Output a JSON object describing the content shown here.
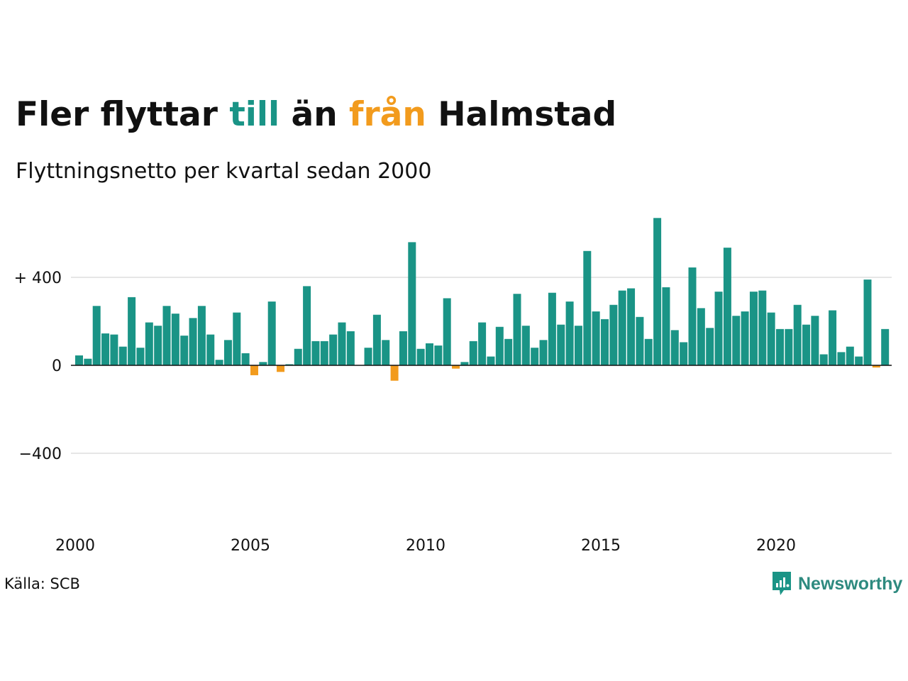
{
  "title": {
    "part1": "Fler flyttar ",
    "part2": "till",
    "part3": " än ",
    "part4": "från",
    "part5": " Halmstad"
  },
  "subtitle": "Flyttningsnetto per kvartal sedan 2000",
  "source": "Källa: SCB",
  "logo": {
    "text": "Newsworthy"
  },
  "colors": {
    "positive": "#1a9486",
    "negative": "#f29b1d",
    "grid": "#e6e6e6",
    "text": "#111111",
    "logo_text": "#2e8a7f"
  },
  "chart_data": {
    "type": "bar",
    "xlabel": "",
    "ylabel": "",
    "ylim": [
      -700,
      700
    ],
    "y_ticks": [
      {
        "value": 400,
        "label": "+ 400"
      },
      {
        "value": 0,
        "label": "0"
      },
      {
        "value": -400,
        "label": "−400"
      }
    ],
    "x_ticks": [
      {
        "value": 2000,
        "label": "2000"
      },
      {
        "value": 2005,
        "label": "2005"
      },
      {
        "value": 2010,
        "label": "2010"
      },
      {
        "value": 2015,
        "label": "2015"
      },
      {
        "value": 2020,
        "label": "2020"
      }
    ],
    "start_year": 2000,
    "periods_per_year": 4,
    "values": [
      45,
      30,
      270,
      145,
      140,
      85,
      310,
      80,
      195,
      180,
      270,
      235,
      135,
      215,
      270,
      140,
      25,
      115,
      240,
      55,
      -45,
      15,
      290,
      -30,
      5,
      75,
      360,
      110,
      110,
      140,
      195,
      155,
      0,
      80,
      230,
      115,
      -70,
      155,
      560,
      75,
      100,
      90,
      305,
      -15,
      15,
      110,
      195,
      40,
      175,
      120,
      325,
      180,
      80,
      115,
      330,
      185,
      290,
      180,
      520,
      245,
      210,
      275,
      340,
      350,
      220,
      120,
      670,
      355,
      160,
      105,
      445,
      260,
      170,
      335,
      535,
      225,
      245,
      335,
      340,
      240,
      165,
      165,
      275,
      185,
      225,
      50,
      250,
      60,
      85,
      40,
      390,
      -10,
      165
    ]
  }
}
